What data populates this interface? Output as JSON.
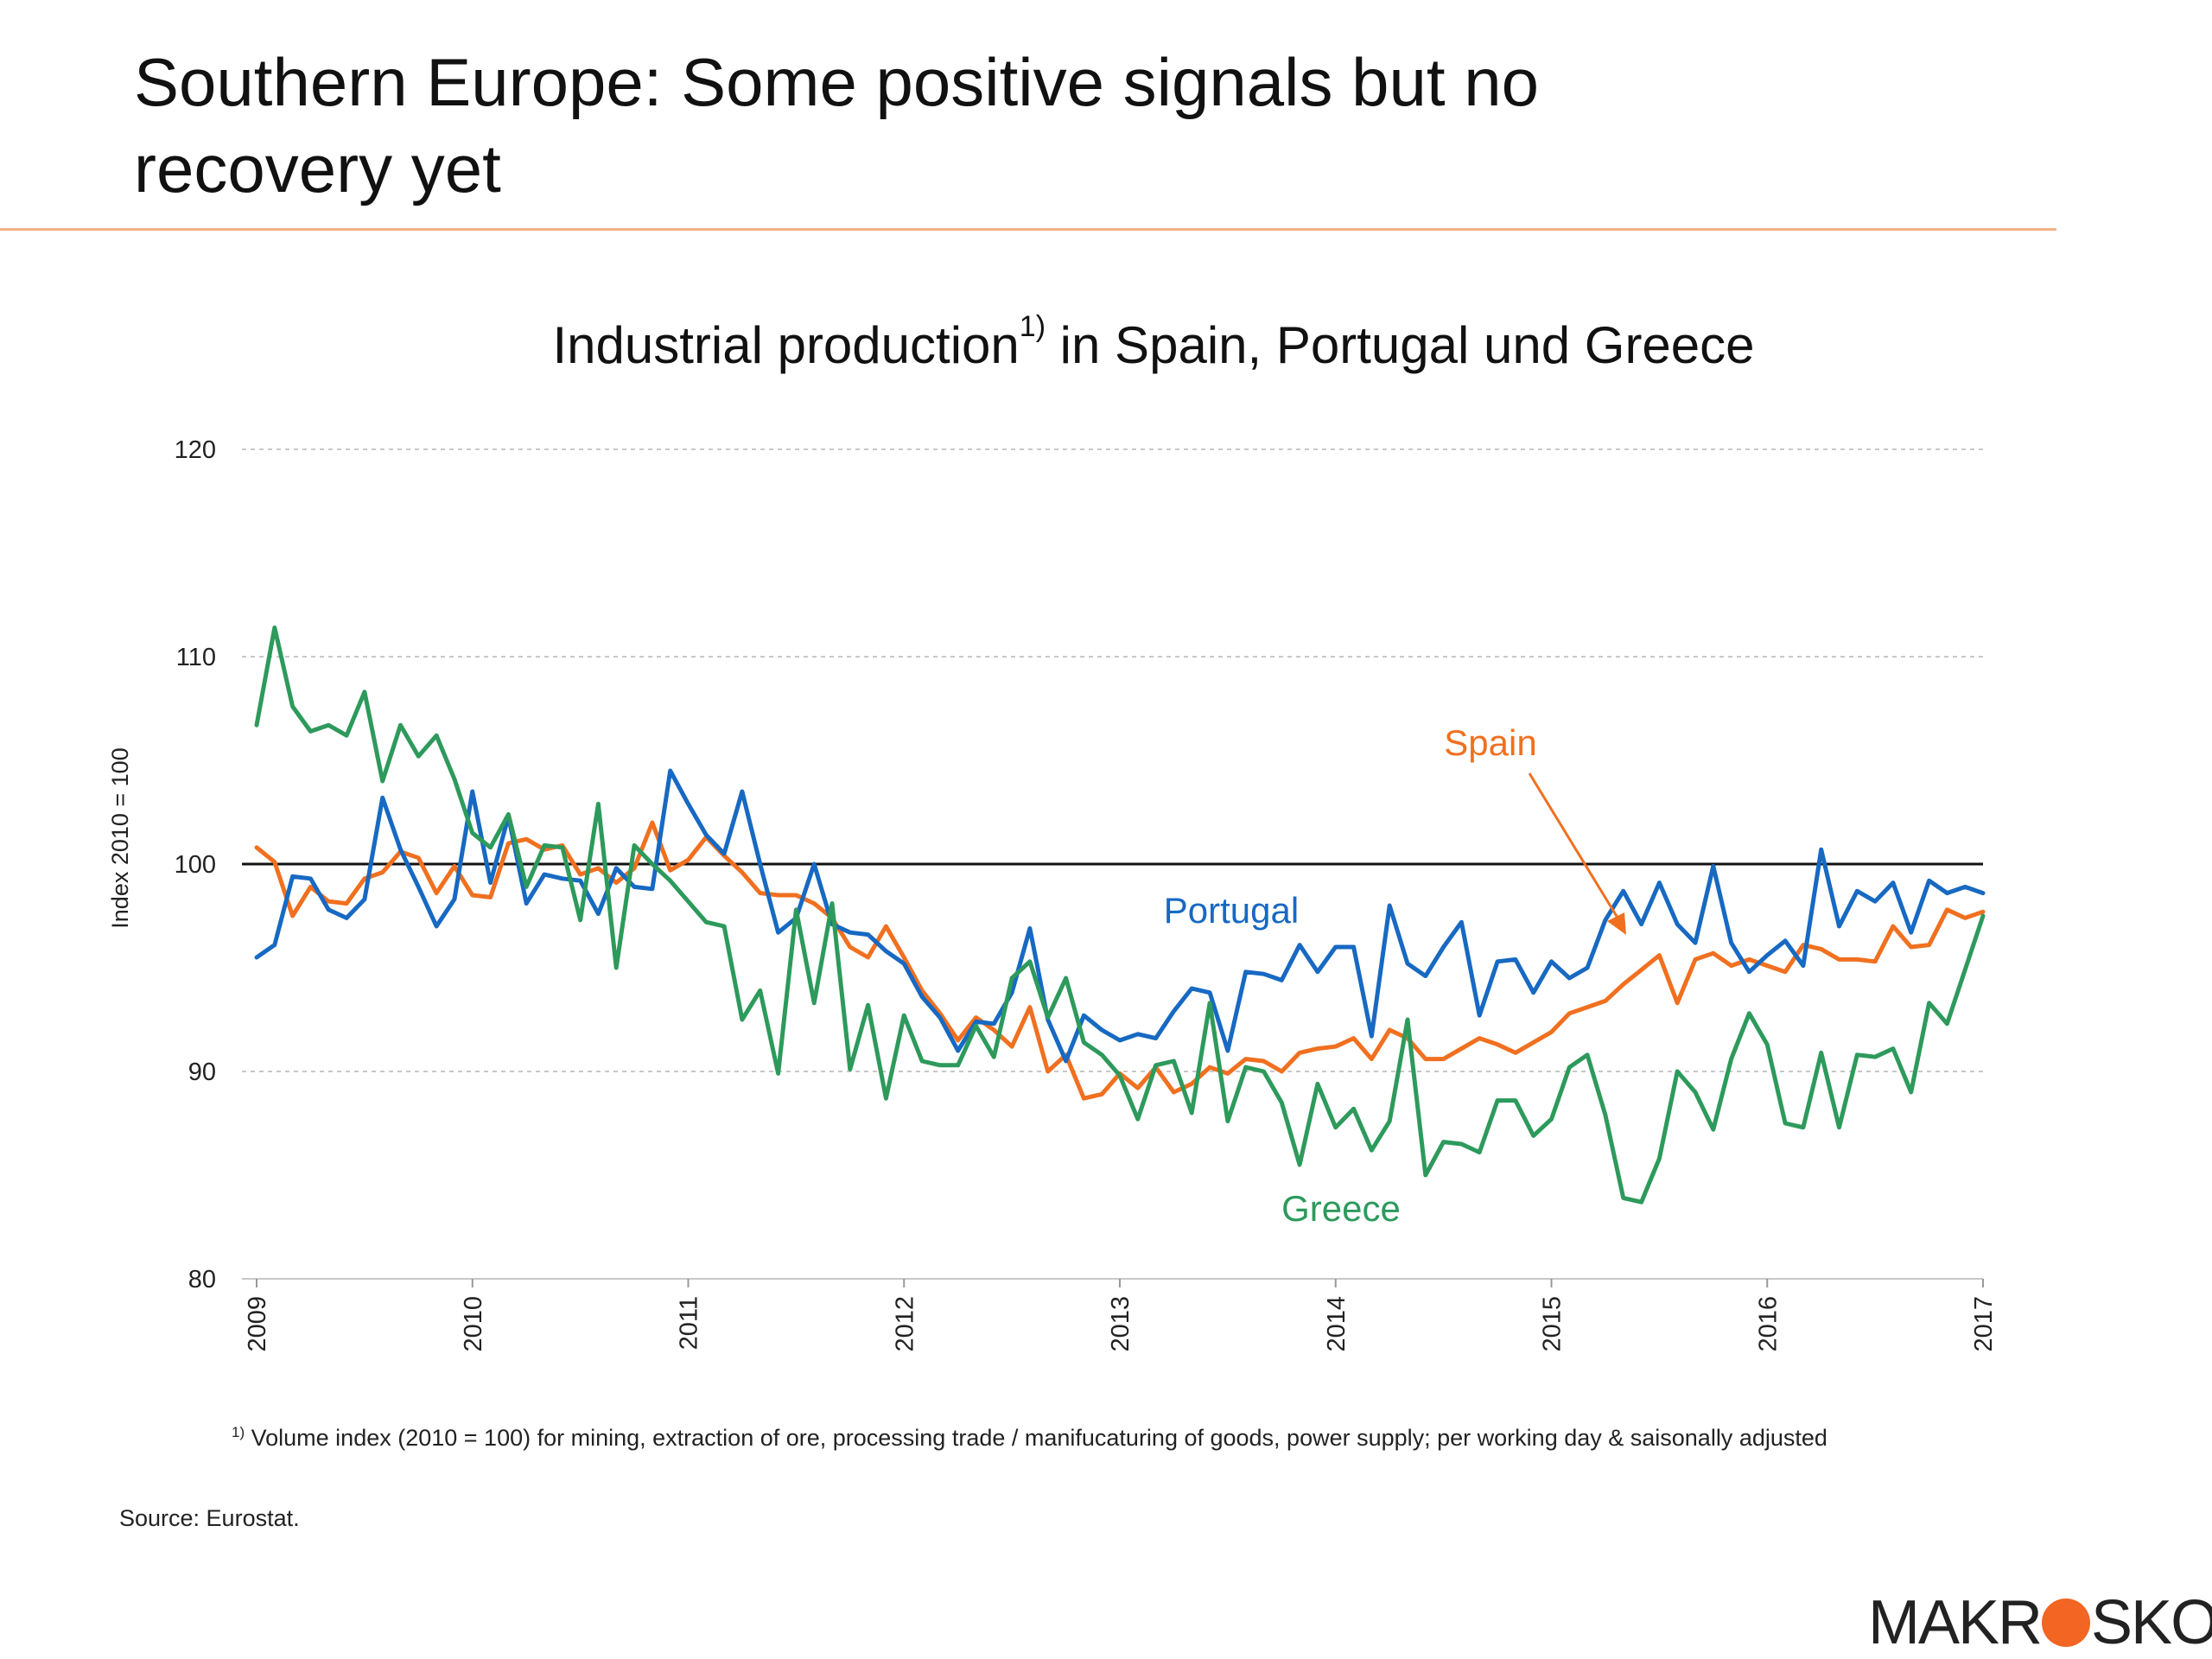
{
  "slide": {
    "title_line1": "Southern Europe: Some positive signals but no",
    "title_line2": "recovery yet",
    "rule_color": "#f4b183"
  },
  "chart_data": {
    "type": "line",
    "title": "Industrial production",
    "title_superscript": "1)",
    "title_suffix": " in Spain, Portugal und Greece",
    "ylabel": "Index 2010 = 100",
    "ylim": [
      80,
      120
    ],
    "yticks": [
      80,
      90,
      100,
      110,
      120
    ],
    "xlim": [
      2009,
      2017
    ],
    "xticks": [
      "2009",
      "2010",
      "2011",
      "2012",
      "2013",
      "2014",
      "2015",
      "2016",
      "2017"
    ],
    "grid": "horizontal dashed",
    "reference_line": 100,
    "series": [
      {
        "name": "Spain",
        "color": "#f07020",
        "start": 2009.0,
        "step": 0.0833333,
        "values": [
          100.8,
          100.1,
          97.5,
          98.9,
          98.2,
          98.1,
          99.3,
          99.6,
          100.6,
          100.3,
          98.6,
          99.9,
          98.5,
          98.4,
          101.0,
          101.2,
          100.7,
          100.9,
          99.5,
          99.8,
          99.1,
          99.8,
          102.0,
          99.7,
          100.2,
          101.3,
          100.4,
          99.6,
          98.6,
          98.5,
          98.5,
          98.1,
          97.4,
          96.0,
          95.5,
          97.0,
          95.5,
          93.9,
          92.8,
          91.5,
          92.6,
          92.0,
          91.2,
          93.1,
          90.0,
          90.8,
          88.7,
          88.9,
          89.9,
          89.2,
          90.2,
          89.0,
          89.4,
          90.2,
          89.9,
          90.6,
          90.5,
          90.0,
          90.9,
          91.1,
          91.2,
          91.6,
          90.6,
          92.0,
          91.6,
          90.6,
          90.6,
          91.1,
          91.6,
          91.3,
          90.9,
          91.4,
          91.9,
          92.8,
          93.1,
          93.4,
          94.2,
          94.9,
          95.6,
          93.3,
          95.4,
          95.7,
          95.1,
          95.4,
          95.1,
          94.8,
          96.1,
          95.9,
          95.4,
          95.4,
          95.3,
          97.0,
          96.0,
          96.1,
          97.8,
          97.4,
          97.7
        ]
      },
      {
        "name": "Portugal",
        "color": "#1769c2",
        "start": 2009.0,
        "step": 0.0833333,
        "values": [
          95.5,
          96.1,
          99.4,
          99.3,
          97.8,
          97.4,
          98.3,
          103.2,
          100.7,
          98.9,
          97.0,
          98.3,
          103.5,
          99.1,
          102.3,
          98.1,
          99.5,
          99.3,
          99.2,
          97.6,
          99.8,
          98.9,
          98.8,
          104.5,
          102.9,
          101.4,
          100.5,
          103.5,
          100.0,
          96.7,
          97.4,
          100.0,
          97.1,
          96.7,
          96.6,
          95.8,
          95.2,
          93.6,
          92.6,
          91.0,
          92.4,
          92.3,
          93.8,
          96.9,
          92.5,
          90.5,
          92.7,
          92.0,
          91.5,
          91.8,
          91.6,
          92.9,
          94.0,
          93.8,
          91.0,
          94.8,
          94.7,
          94.4,
          96.1,
          94.8,
          96.0,
          96.0,
          91.7,
          98.0,
          95.2,
          94.6,
          96.0,
          97.2,
          92.7,
          95.3,
          95.4,
          93.8,
          95.3,
          94.5,
          95.0,
          97.3,
          98.7,
          97.1,
          99.1,
          97.1,
          96.2,
          99.9,
          96.2,
          94.8,
          95.6,
          96.3,
          95.1,
          100.7,
          97.0,
          98.7,
          98.2,
          99.1,
          96.7,
          99.2,
          98.6,
          98.9,
          98.6
        ]
      },
      {
        "name": "Greece",
        "color": "#2d9a5c",
        "start": 2009.0,
        "step": 0.0833333,
        "values": [
          106.7,
          111.4,
          107.6,
          106.4,
          106.7,
          106.2,
          108.3,
          104.0,
          106.7,
          105.2,
          106.2,
          104.1,
          101.5,
          100.8,
          102.4,
          98.9,
          100.9,
          100.8,
          97.3,
          102.9,
          95.0,
          100.9,
          100.0,
          99.2,
          98.2,
          97.2,
          97.0,
          92.5,
          93.9,
          89.9,
          97.8,
          93.3,
          98.1,
          90.1,
          93.2,
          88.7,
          92.7,
          90.5,
          90.3,
          90.3,
          92.2,
          90.7,
          94.5,
          95.3,
          92.6,
          94.5,
          91.4,
          90.8,
          89.8,
          87.7,
          90.3,
          90.5,
          88.0,
          93.3,
          87.6,
          90.2,
          90.0,
          88.5,
          85.5,
          89.4,
          87.3,
          88.2,
          86.2,
          87.6,
          92.5,
          85.0,
          86.6,
          86.5,
          86.1,
          88.6,
          88.6,
          86.9,
          87.7,
          90.2,
          90.8,
          87.9,
          83.9,
          83.7,
          85.8,
          90.0,
          89.0,
          87.2,
          90.6,
          92.8,
          91.3,
          87.5,
          87.3,
          90.9,
          87.3,
          90.8,
          90.7,
          91.1,
          89.0,
          93.3,
          92.3,
          94.9,
          97.5
        ]
      }
    ],
    "annotations": [
      {
        "text": "Spain",
        "color": "#f07020"
      },
      {
        "text": "Portugal",
        "color": "#1769c2"
      },
      {
        "text": "Greece",
        "color": "#2d9a5c"
      }
    ],
    "footnote_mark": "1)",
    "footnote": " Volume index (2010 = 100) for mining, extraction of ore, processing trade / manifucaturing of goods, power supply; per working day & saisonally adjusted",
    "source": "Source: Eurostat."
  },
  "logo": {
    "text_before": "MAKR",
    "text_after": "SKOP",
    "dot_color": "#f26522"
  }
}
